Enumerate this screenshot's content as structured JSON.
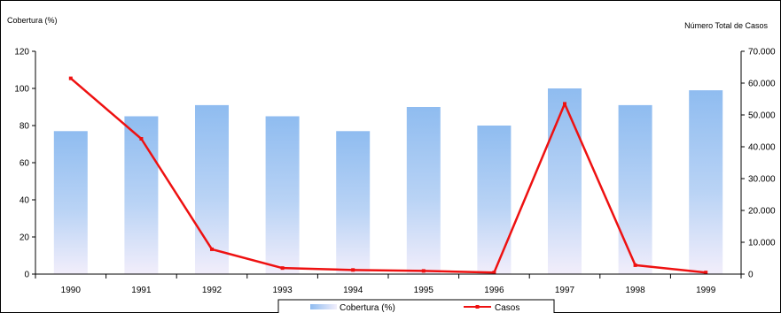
{
  "chart_data": {
    "type": "bar",
    "categories": [
      "1990",
      "1991",
      "1992",
      "1993",
      "1994",
      "1995",
      "1996",
      "1997",
      "1998",
      "1999"
    ],
    "series": [
      {
        "name": "Cobertura (%)",
        "type": "bar",
        "axis": "left",
        "values": [
          77,
          85,
          91,
          85,
          77,
          90,
          80,
          100,
          91,
          99
        ]
      },
      {
        "name": "Casos",
        "type": "line",
        "axis": "right",
        "values": [
          61500,
          42500,
          7800,
          1900,
          1300,
          1000,
          500,
          53500,
          2800,
          500
        ]
      }
    ],
    "ylabel": "Cobertura (%)",
    "ylabel_right": "Número Total de Casos",
    "ylim": [
      0,
      120
    ],
    "yticks": [
      "0",
      "20",
      "40",
      "60",
      "80",
      "100",
      "120"
    ],
    "ylim_right": [
      0,
      70000
    ],
    "yticks_right": [
      "0",
      "10.000",
      "20.000",
      "30.000",
      "40.000",
      "50.000",
      "60.000",
      "70.000"
    ],
    "grid": false,
    "legend_position": "bottom",
    "colors": {
      "bar": "#8fbcf0",
      "bar_light": "#f2eefb",
      "line": "#ee1111",
      "axis": "#000000"
    }
  }
}
